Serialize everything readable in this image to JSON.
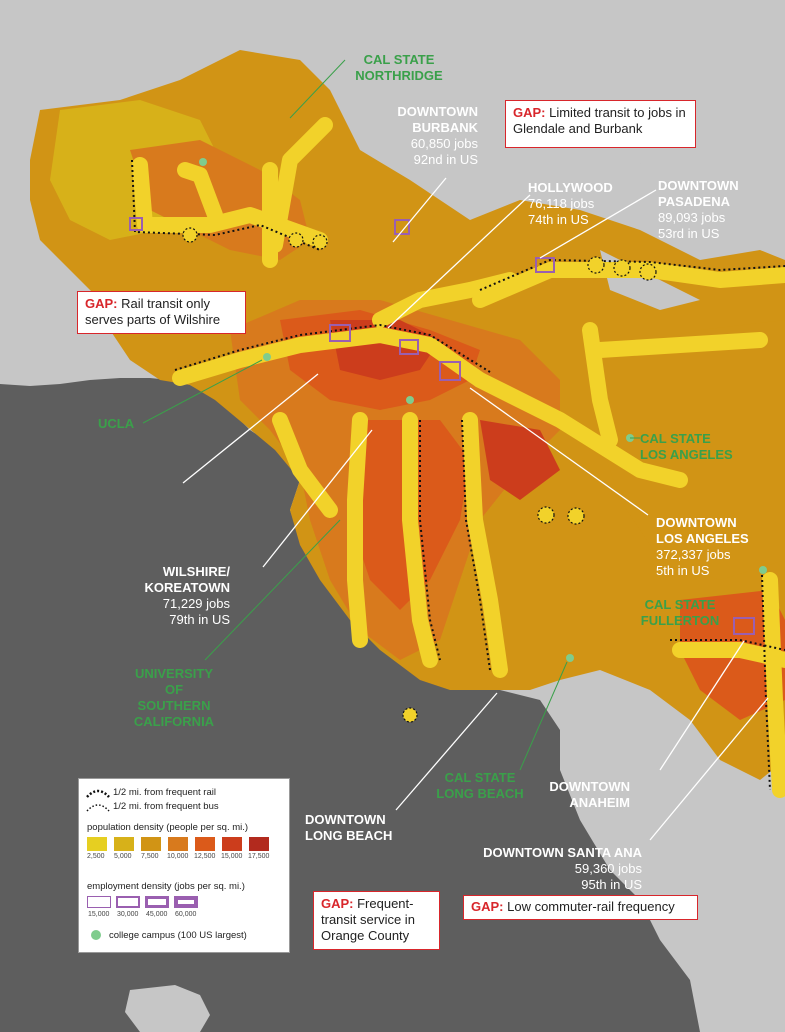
{
  "colors": {
    "land_gray": "#c6c6c6",
    "ocean": "#5e5e5e",
    "pop_scale": [
      "#e6cf21",
      "#d7b119",
      "#d19415",
      "#d87a1d",
      "#db5a1a",
      "#cc3d1c",
      "#b22a1e"
    ],
    "emp_outline": "#9a5fb0",
    "campus_dot": "#7fcc8d",
    "gap_red": "#d8262b",
    "campus_text": "#3aa04a"
  },
  "cities": {
    "burbank": {
      "name_1": "DOWNTOWN",
      "name_2": "BURBANK",
      "jobs": "60,850 jobs",
      "rank": "92nd in US"
    },
    "hollywood": {
      "name": "HOLLYWOOD",
      "jobs": "76,118 jobs",
      "rank": "74th in US"
    },
    "pasadena": {
      "name_1": "DOWNTOWN",
      "name_2": "PASADENA",
      "jobs": "89,093 jobs",
      "rank": "53rd in US"
    },
    "wilshire": {
      "name_1": "WILSHIRE/",
      "name_2": "KOREATOWN",
      "jobs": "71,229 jobs",
      "rank": "79th in US"
    },
    "los_angeles": {
      "name_1": "DOWNTOWN",
      "name_2": "LOS ANGELES",
      "jobs": "372,337 jobs",
      "rank": "5th in US"
    },
    "long_beach": {
      "name_1": "DOWNTOWN",
      "name_2": "LONG BEACH"
    },
    "anaheim": {
      "name_1": "DOWNTOWN",
      "name_2": "ANAHEIM"
    },
    "santa_ana": {
      "name": "DOWNTOWN SANTA ANA",
      "jobs": "59,360 jobs",
      "rank": "95th in US"
    }
  },
  "campuses": {
    "northridge": {
      "line_1": "CAL STATE",
      "line_2": "NORTHRIDGE"
    },
    "ucla": "UCLA",
    "csula": {
      "line_1": "CAL STATE",
      "line_2": "LOS ANGELES"
    },
    "fullerton": {
      "line_1": "CAL STATE",
      "line_2": "FULLERTON"
    },
    "usc": {
      "line_1": "UNIVERSITY",
      "line_2": "OF",
      "line_3": "SOUTHERN",
      "line_4": "CALIFORNIA"
    },
    "long_beach": {
      "line_1": "CAL STATE",
      "line_2": "LONG BEACH"
    }
  },
  "gaps": {
    "glendale": {
      "tag": "GAP:",
      "text_1": " Limited transit to jobs in",
      "text_2": "Glendale and Burbank"
    },
    "wilshire": {
      "tag": "GAP:",
      "text_1": " Rail transit only",
      "text_2": "serves parts of  Wilshire"
    },
    "orange": {
      "tag": "GAP:",
      "text_1": " Frequent-",
      "text_2": "transit service in",
      "text_3": "Orange County"
    },
    "commuter": {
      "tag": "GAP:",
      "text_1": " Low commuter-rail frequency"
    }
  },
  "legend": {
    "rail": "1/2 mi. from frequent rail",
    "bus": "1/2 mi. from frequent bus",
    "pop_title": "population density (people per sq. mi.)",
    "pop_ticks": [
      "2,500",
      "5,000",
      "7,500",
      "10,000",
      "12,500",
      "15,000",
      "17,500"
    ],
    "emp_title": "employment density (jobs per sq. mi.)",
    "emp_ticks": [
      "15,000",
      "30,000",
      "45,000",
      "60,000"
    ],
    "campus": "college campus (100 US largest)"
  }
}
